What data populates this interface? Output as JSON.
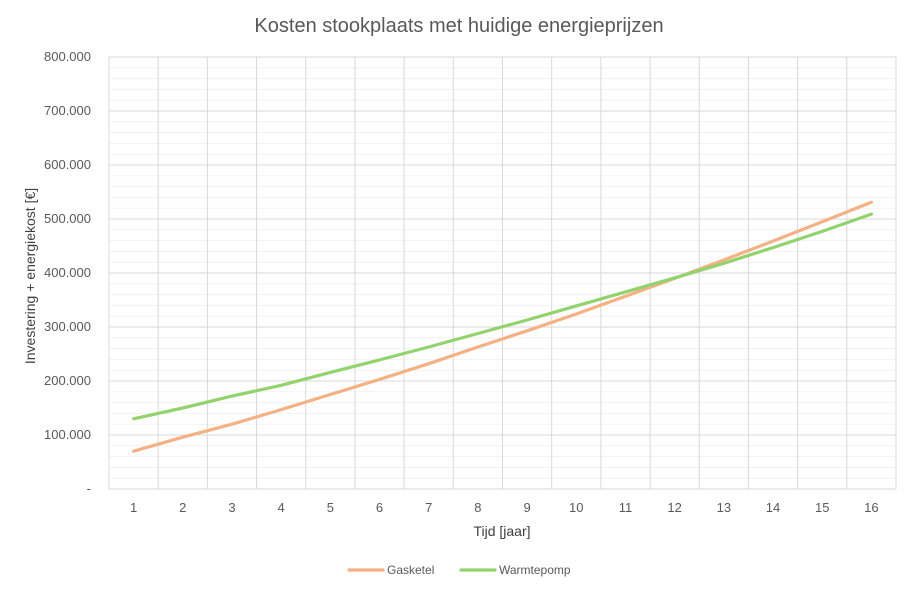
{
  "chart_data": {
    "type": "line",
    "title": "Kosten stookplaats met huidige energieprijzen",
    "xlabel": "Tijd [jaar]",
    "ylabel": "Investering + energiekost [€]",
    "x": [
      1,
      2,
      3,
      4,
      5,
      6,
      7,
      8,
      9,
      10,
      11,
      12,
      13,
      14,
      15,
      16
    ],
    "ylim": [
      0,
      800000
    ],
    "y_ticks": [
      0,
      100000,
      200000,
      300000,
      400000,
      500000,
      600000,
      700000,
      800000
    ],
    "y_tick_labels": [
      "-",
      "100.000",
      "200.000",
      "300.000",
      "400.000",
      "500.000",
      "600.000",
      "700.000",
      "800.000"
    ],
    "grid": true,
    "legend_position": "bottom",
    "series": [
      {
        "name": "Gasketel",
        "color": "#F4B183",
        "values": [
          70000,
          96000,
          120000,
          147000,
          175000,
          203000,
          232000,
          263000,
          293000,
          324000,
          357000,
          390000,
          424000,
          459000,
          495000,
          531000
        ]
      },
      {
        "name": "Warmtepomp",
        "color": "#92D36E",
        "values": [
          130000,
          150000,
          172000,
          192000,
          216000,
          239000,
          263000,
          288000,
          313000,
          339000,
          365000,
          391000,
          418000,
          447000,
          477000,
          509000
        ]
      }
    ]
  }
}
